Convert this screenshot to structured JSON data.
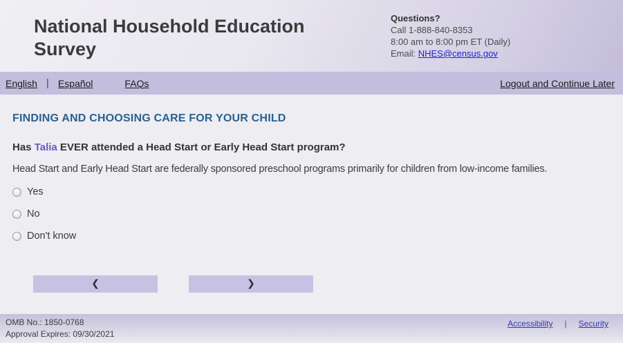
{
  "header": {
    "title": "National Household Education Survey",
    "questions_label": "Questions?",
    "phone": "Call 1-888-840-8353",
    "hours": "8:00 am to 8:00 pm ET (Daily)",
    "email_prefix": "Email: ",
    "email_link": "NHES@census.gov"
  },
  "nav": {
    "english": "English",
    "espanol": "Español",
    "faqs": "FAQs",
    "separator": "|",
    "logout": "Logout and Continue Later"
  },
  "main": {
    "section_title": "FINDING AND CHOOSING CARE FOR YOUR CHILD",
    "question": {
      "prefix": "Has ",
      "child_name": "Talia",
      "suffix": " EVER attended a Head Start or Early Head Start program?"
    },
    "description": "Head Start and Early Head Start are federally sponsored preschool programs primarily for children from low-income families.",
    "options": [
      {
        "label": "Yes",
        "selected": false
      },
      {
        "label": "No",
        "selected": false
      },
      {
        "label": "Don't know",
        "selected": false
      }
    ],
    "back_glyph": "❮",
    "next_glyph": "❯"
  },
  "footer": {
    "omb_no": "OMB No.: 1850-0768",
    "approval": "Approval Expires: 09/30/2021",
    "accessibility": "Accessibility",
    "separator": "|",
    "security": "Security"
  },
  "colors": {
    "nav_bar": "#c3bedd",
    "section_title": "#29618e",
    "child_name": "#6459c4",
    "button": "#c7c2e3",
    "link_blue": "#3434bb",
    "email_link": "#1f1fcf"
  }
}
